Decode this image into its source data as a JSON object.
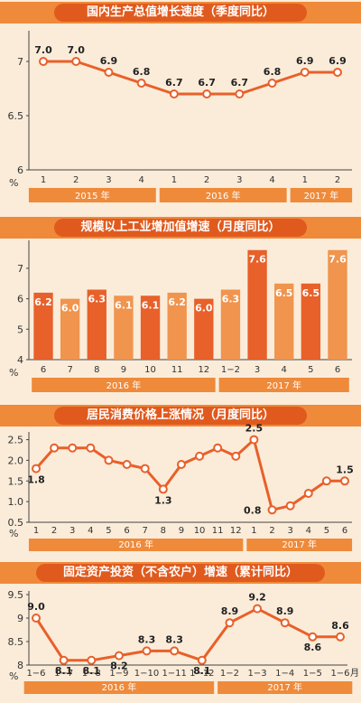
{
  "chart_data": [
    {
      "type": "line",
      "title": "国内生产总值增长速度（季度同比）",
      "unit": "%",
      "categories": [
        "1",
        "2",
        "3",
        "4",
        "1",
        "2",
        "3",
        "4",
        "1",
        "2"
      ],
      "values": [
        7.0,
        7.0,
        6.9,
        6.8,
        6.7,
        6.7,
        6.7,
        6.8,
        6.9,
        6.9
      ],
      "labels": [
        "7.0",
        "7.0",
        "6.9",
        "6.8",
        "6.7",
        "6.7",
        "6.7",
        "6.8",
        "6.9",
        "6.9"
      ],
      "yticks": [
        "7",
        "6.5",
        "6"
      ],
      "ylim": [
        6,
        7.25
      ],
      "years": [
        {
          "label": "2015 年",
          "from": 0,
          "to": 3
        },
        {
          "label": "2016 年",
          "from": 4,
          "to": 7
        },
        {
          "label": "2017 年",
          "from": 8,
          "to": 9
        }
      ]
    },
    {
      "type": "bar",
      "title": "规模以上工业增加值增速（月度同比）",
      "unit": "%",
      "categories": [
        "6",
        "7",
        "8",
        "9",
        "10",
        "11",
        "12",
        "1−2",
        "3",
        "4",
        "5",
        "6"
      ],
      "values": [
        6.2,
        6.0,
        6.3,
        6.1,
        6.1,
        6.2,
        6.0,
        6.3,
        7.6,
        6.5,
        6.5,
        7.6
      ],
      "labels": [
        "6.2",
        "6.0",
        "6.3",
        "6.1",
        "6.1",
        "6.2",
        "6.0",
        "6.3",
        "7.6",
        "6.5",
        "6.5",
        "7.6"
      ],
      "yticks": [
        "7",
        "6",
        "5",
        "4"
      ],
      "ylim": [
        4,
        7.8
      ],
      "colors": [
        "#e8602a",
        "#f0944e",
        "#e8602a",
        "#f0944e",
        "#e8602a",
        "#f0944e",
        "#e8602a",
        "#f0944e",
        "#e8602a",
        "#f0944e",
        "#e8602a",
        "#f0944e"
      ],
      "years": [
        {
          "label": "2016 年",
          "from": 0,
          "to": 6
        },
        {
          "label": "2017 年",
          "from": 7,
          "to": 11
        }
      ]
    },
    {
      "type": "line",
      "title": "居民消费价格上涨情况（月度同比）",
      "unit": "%",
      "categories": [
        "1",
        "2",
        "3",
        "4",
        "5",
        "6",
        "7",
        "8",
        "9",
        "10",
        "11",
        "12",
        "1",
        "2",
        "3",
        "4",
        "5",
        "6"
      ],
      "values": [
        1.8,
        2.3,
        2.3,
        2.3,
        2.0,
        1.9,
        1.8,
        1.3,
        1.9,
        2.1,
        2.3,
        2.1,
        2.5,
        0.8,
        0.9,
        1.2,
        1.5,
        1.5
      ],
      "labels": [
        "1.8",
        "",
        "",
        "",
        "",
        "",
        "",
        "1.3",
        "",
        "",
        "",
        "",
        "2.5",
        "0.8",
        "",
        "",
        "",
        "1.5"
      ],
      "yticks": [
        "2.5",
        "2.0",
        "1.5",
        "1.0",
        "0.5"
      ],
      "ylim": [
        0.5,
        2.6
      ],
      "years": [
        {
          "label": "2016 年",
          "from": 0,
          "to": 11
        },
        {
          "label": "2017 年",
          "from": 12,
          "to": 17
        }
      ]
    },
    {
      "type": "line",
      "title": "固定资产投资（不含农户）增速（累计同比）",
      "unit": "%",
      "month_unit": "月",
      "categories": [
        "1−6",
        "1−7",
        "1−8",
        "1−9",
        "1−10",
        "1−11",
        "1−12",
        "1−2",
        "1−3",
        "1−4",
        "1−5",
        "1−6"
      ],
      "values": [
        9.0,
        8.1,
        8.1,
        8.2,
        8.3,
        8.3,
        8.1,
        8.9,
        9.2,
        8.9,
        8.6,
        8.6
      ],
      "labels": [
        "9.0",
        "8.1",
        "8.1",
        "8.2",
        "8.3",
        "8.3",
        "8.1",
        "8.9",
        "9.2",
        "8.9",
        "8.6",
        "8.6"
      ],
      "yticks": [
        "9.5",
        "9",
        "8.5",
        "8"
      ],
      "ylim": [
        8,
        9.5
      ],
      "years": [
        {
          "label": "2016 年",
          "from": 0,
          "to": 6
        },
        {
          "label": "2017 年",
          "from": 7,
          "to": 11
        }
      ]
    }
  ],
  "colors": {
    "accent": "#e8602a",
    "light": "#f0944e",
    "banner": "#ef8a3a",
    "bg": "#fbecd9"
  }
}
